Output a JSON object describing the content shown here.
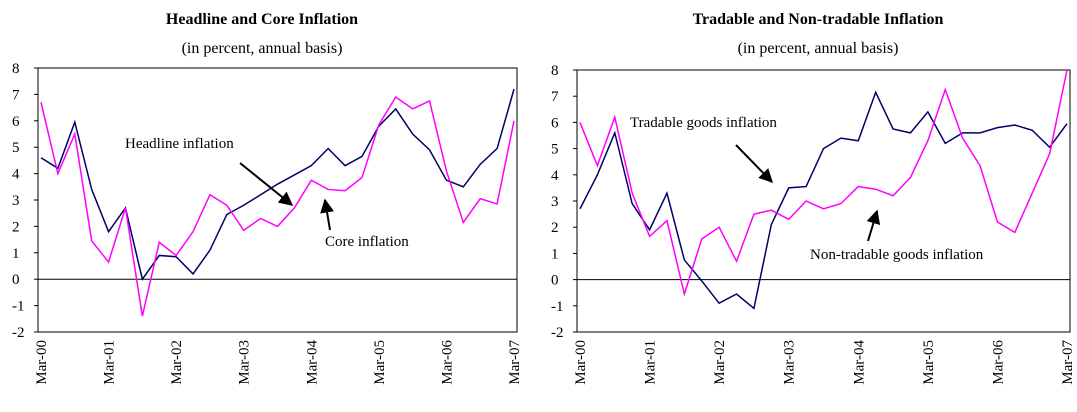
{
  "chart_data": [
    {
      "type": "line",
      "title": "Headline and Core Inflation",
      "subtitle": "(in percent, annual basis)",
      "categories": [
        "Mar-00",
        null,
        null,
        null,
        "Mar-01",
        null,
        null,
        null,
        "Mar-02",
        null,
        null,
        null,
        "Mar-03",
        null,
        null,
        null,
        "Mar-04",
        null,
        null,
        null,
        "Mar-05",
        null,
        null,
        null,
        "Mar-06",
        null,
        null,
        null,
        "Mar-07"
      ],
      "series": [
        {
          "name": "Headline inflation",
          "color": "#000066",
          "values": [
            4.6,
            4.2,
            5.95,
            3.4,
            1.8,
            2.7,
            0.0,
            0.9,
            0.85,
            0.2,
            1.1,
            2.45,
            2.8,
            3.2,
            3.6,
            3.95,
            4.3,
            4.95,
            4.3,
            4.65,
            5.8,
            6.45,
            5.5,
            4.9,
            3.75,
            3.5,
            4.35,
            4.95,
            7.2
          ]
        },
        {
          "name": "Core inflation",
          "color": "#ff00ff",
          "values": [
            6.7,
            4.0,
            5.5,
            1.45,
            0.65,
            2.7,
            -1.4,
            1.4,
            0.9,
            1.8,
            3.2,
            2.8,
            1.85,
            2.3,
            2.0,
            2.7,
            3.75,
            3.4,
            3.35,
            3.85,
            5.85,
            6.9,
            6.45,
            6.75,
            4.1,
            2.15,
            3.05,
            2.85,
            6.0
          ]
        }
      ],
      "ylim": [
        -2,
        8
      ],
      "yticks": [
        -2,
        -1,
        0,
        1,
        2,
        3,
        4,
        5,
        6,
        7,
        8
      ],
      "grid": false
    },
    {
      "type": "line",
      "title": "Tradable and Non-tradable Inflation",
      "subtitle": "(in percent, annual basis)",
      "categories": [
        "Mar-00",
        null,
        null,
        null,
        "Mar-01",
        null,
        null,
        null,
        "Mar-02",
        null,
        null,
        null,
        "Mar-03",
        null,
        null,
        null,
        "Mar-04",
        null,
        null,
        null,
        "Mar-05",
        null,
        null,
        null,
        "Mar-06",
        null,
        null,
        null,
        "Mar-07"
      ],
      "series": [
        {
          "name": "Tradable goods inflation",
          "color": "#000066",
          "values": [
            2.7,
            4.0,
            5.6,
            2.9,
            1.9,
            3.3,
            0.75,
            -0.05,
            -0.9,
            -0.55,
            -1.1,
            2.1,
            3.5,
            3.55,
            5.0,
            5.4,
            5.3,
            7.15,
            5.75,
            5.6,
            6.4,
            5.2,
            5.6,
            5.6,
            5.8,
            5.9,
            5.7,
            5.05,
            5.95
          ]
        },
        {
          "name": "Non-tradable goods inflation",
          "color": "#ff00ff",
          "values": [
            6.0,
            4.35,
            6.2,
            3.3,
            1.65,
            2.25,
            -0.55,
            1.55,
            2.0,
            0.7,
            2.5,
            2.65,
            2.3,
            3.0,
            2.7,
            2.9,
            3.55,
            3.45,
            3.2,
            3.9,
            5.3,
            7.25,
            5.4,
            4.35,
            2.2,
            1.8,
            3.3,
            4.8,
            8.0
          ]
        }
      ],
      "ylim": [
        -2,
        8
      ],
      "yticks": [
        -2,
        -1,
        0,
        1,
        2,
        3,
        4,
        5,
        6,
        7,
        8
      ],
      "grid": false
    }
  ]
}
